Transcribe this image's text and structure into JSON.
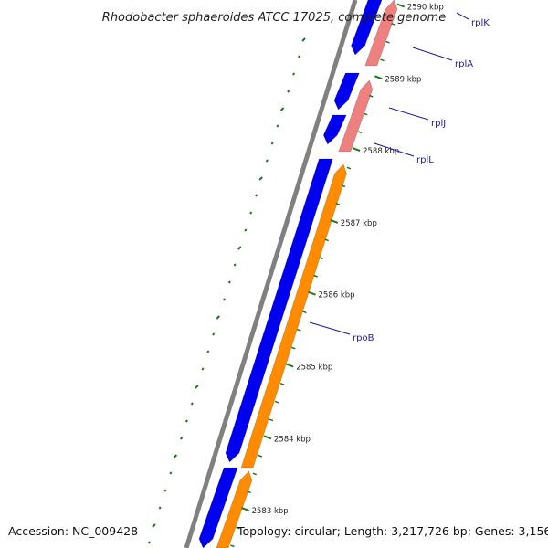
{
  "title": "Rhodobacter sphaeroides ATCC 17025, complete genome",
  "accession_label": "Accession: NC_009428",
  "topology_label": "Topology: circular; Length: 3,217,726 bp; Genes: 3,156",
  "colors": {
    "backbone": "#808080",
    "forward_gene": "#0000ee",
    "reverse_gene_pink": "#ee8080",
    "reverse_gene_orange": "#ff8c00",
    "tick": "#1a7a1a",
    "gene_label": "#1a1aa6"
  },
  "scale": {
    "ticks": [
      {
        "label": "2590 kbp",
        "kbp": 2590
      },
      {
        "label": "2589 kbp",
        "kbp": 2589
      },
      {
        "label": "2588 kbp",
        "kbp": 2588
      },
      {
        "label": "2587 kbp",
        "kbp": 2587
      },
      {
        "label": "2586 kbp",
        "kbp": 2586
      },
      {
        "label": "2585 kbp",
        "kbp": 2585
      },
      {
        "label": "2584 kbp",
        "kbp": 2584
      },
      {
        "label": "2583 kbp",
        "kbp": 2583
      }
    ]
  },
  "genes": [
    {
      "name": "rplK",
      "strand": "forward"
    },
    {
      "name": "rplA",
      "strand": "forward"
    },
    {
      "name": "rplJ",
      "strand": "forward"
    },
    {
      "name": "rplL",
      "strand": "forward"
    },
    {
      "name": "rpoB",
      "strand": "forward"
    }
  ]
}
